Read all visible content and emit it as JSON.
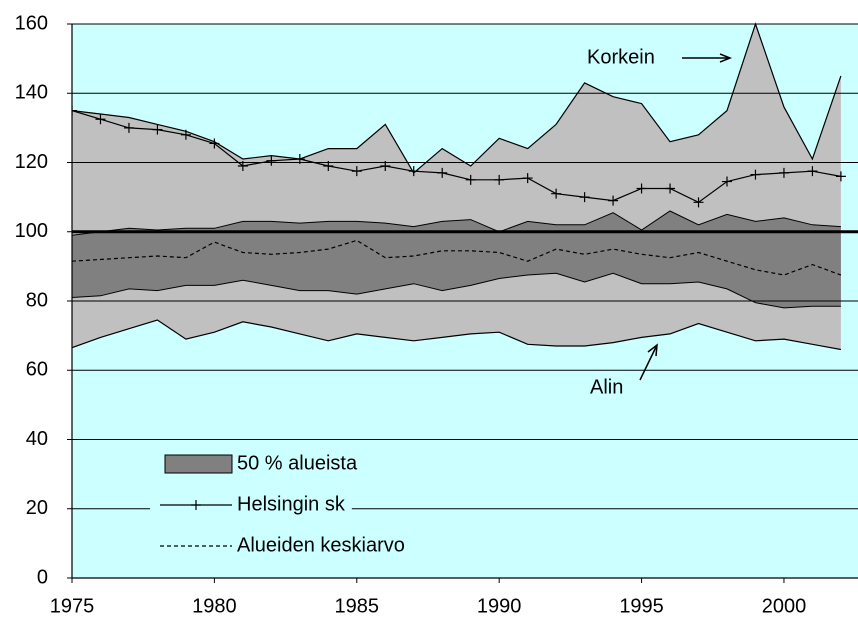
{
  "chart_data": {
    "type": "band-line",
    "x": [
      1975,
      1976,
      1977,
      1978,
      1979,
      1980,
      1981,
      1982,
      1983,
      1984,
      1985,
      1986,
      1987,
      1988,
      1989,
      1990,
      1991,
      1992,
      1993,
      1994,
      1995,
      1996,
      1997,
      1998,
      1999,
      2000,
      2001,
      2002
    ],
    "xlim": [
      1975,
      2002.6
    ],
    "xticks": [
      1975,
      1980,
      1985,
      1990,
      1995,
      2000
    ],
    "ylim": [
      0,
      160
    ],
    "yticks": [
      0,
      20,
      40,
      60,
      80,
      100,
      120,
      140,
      160
    ],
    "grid": true,
    "reference": 100,
    "background": "#ccffff",
    "legend": "lower left",
    "bands": [
      {
        "name": "50 % alueista",
        "color": "#808080",
        "upper": [
          99,
          100,
          101,
          100.5,
          101,
          101,
          103,
          103,
          102.5,
          103,
          103,
          102.5,
          101.5,
          103,
          103.5,
          100,
          103,
          102,
          102,
          105.5,
          100.5,
          106,
          102,
          105,
          103,
          104,
          102,
          101.5
        ],
        "lower": [
          81,
          81.5,
          83.5,
          83,
          84.5,
          84.5,
          86,
          84.5,
          83,
          83,
          82,
          83.5,
          85,
          83,
          84.5,
          86.5,
          87.5,
          88,
          85.5,
          88,
          85,
          85,
          85.5,
          83.5,
          79.5,
          78,
          78.5,
          78.5
        ]
      }
    ],
    "range_color": "#c0c0c0",
    "series": [
      {
        "name": "Korkein",
        "color": "#000000",
        "values": [
          135,
          134,
          133,
          131,
          129,
          126,
          121,
          122,
          121,
          124,
          124,
          131,
          117,
          124,
          119,
          127,
          124,
          131,
          143,
          139,
          137,
          126,
          128,
          135,
          160,
          136,
          121,
          145
        ]
      },
      {
        "name": "Alin",
        "color": "#000000",
        "values": [
          66.5,
          69.5,
          72,
          74.5,
          69,
          71,
          74,
          72.5,
          70.5,
          68.5,
          70.5,
          69.5,
          68.5,
          69.5,
          70.5,
          71,
          67.5,
          67,
          67,
          68,
          69.5,
          70.5,
          73.5,
          71,
          68.5,
          69,
          67.5,
          66
        ]
      },
      {
        "name": "Helsingin sk",
        "color": "#000000",
        "marker": "+",
        "values": [
          135,
          132.5,
          130,
          129.5,
          128,
          125.5,
          119,
          120.5,
          121,
          119,
          117.5,
          119,
          117.5,
          117,
          115,
          115,
          115.5,
          111,
          110,
          109,
          112.5,
          112.5,
          108.5,
          114.5,
          116.5,
          117,
          117.5,
          116
        ]
      },
      {
        "name": "Alueiden keskiarvo",
        "color": "#000000",
        "dash": true,
        "values": [
          91.5,
          92,
          92.5,
          93,
          92.5,
          97,
          94,
          93.5,
          94,
          95,
          97.5,
          92.5,
          93,
          94.5,
          94.5,
          94,
          91.5,
          95,
          93.5,
          95,
          93.5,
          92.5,
          94,
          91.5,
          89,
          87.5,
          90.5,
          87.5
        ]
      }
    ]
  }
}
